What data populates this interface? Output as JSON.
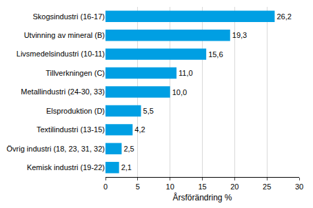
{
  "chart_data": {
    "type": "bar",
    "orientation": "horizontal",
    "categories": [
      "Skogsindustri (16-17)",
      "Utvinning av mineral (B)",
      "Livsmedelsindustri (10-11)",
      "Tillverkningen (C)",
      "Metallindustri (24-30, 33)",
      "Elsproduktion (D)",
      "Textilindustri (13-15)",
      "Övrig industri (18, 23, 31, 32)",
      "Kemisk industri (19-22)"
    ],
    "values": [
      26.2,
      19.3,
      15.6,
      11.0,
      10.0,
      5.5,
      4.2,
      2.5,
      2.1
    ],
    "value_labels": [
      "26,2",
      "19,3",
      "15,6",
      "11,0",
      "10,0",
      "5,5",
      "4,2",
      "2,5",
      "2,1"
    ],
    "data_labels": true,
    "color": "#009fe3",
    "x_label": "Årsförändring %",
    "xlim": [
      0,
      30
    ],
    "xticks": [
      0,
      5,
      10,
      15,
      20,
      25,
      30
    ],
    "grid": true
  }
}
